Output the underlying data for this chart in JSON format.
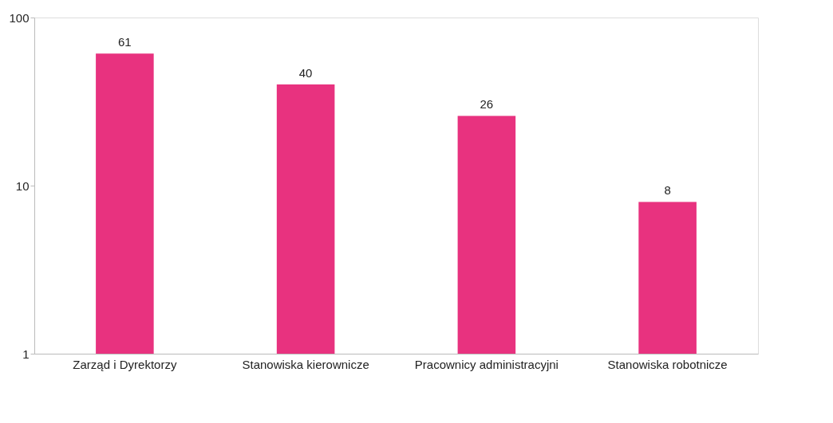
{
  "chart_data": {
    "type": "bar",
    "categories": [
      "Zarząd i Dyrektorzy",
      "Stanowiska kierownicze",
      "Pracownicy administracyjni",
      "Stanowiska robotnicze"
    ],
    "values": [
      61,
      40,
      26,
      8
    ],
    "color": "#e8327f",
    "log": true,
    "ylim": [
      1,
      100
    ],
    "yticks": [
      1,
      10,
      100
    ],
    "grid": false,
    "data_labels": true
  }
}
